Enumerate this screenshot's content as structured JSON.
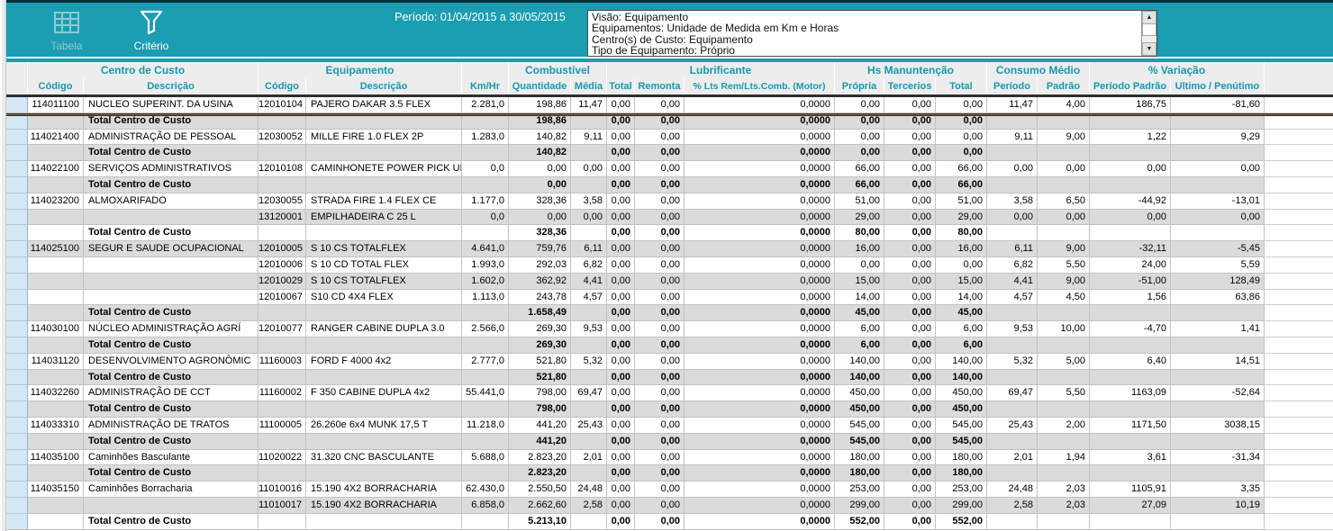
{
  "toolbar": {
    "bg_color": "#1b9db2",
    "buttons": [
      {
        "label": "Tabela",
        "icon": "table-icon",
        "disabled": true
      },
      {
        "label": "Critério",
        "icon": "filter-icon",
        "disabled": false
      }
    ],
    "period_label": "Período: 01/04/2015 a 30/05/2015"
  },
  "info_box": {
    "lines": [
      "Visão: Equipamento",
      "Equipamentos: Unidade de Medida em Km e Horas",
      "Centro(s) de Custo: Equipamento",
      "Tipo de Equipamento: Próprio"
    ],
    "scroll_up_icon": "▲",
    "scroll_down_icon": "▼"
  },
  "table": {
    "accent_color": "#1898ae",
    "groups": [
      {
        "label": "",
        "cols": [
          0
        ]
      },
      {
        "label": "Centro de Custo",
        "cols": [
          1,
          2
        ]
      },
      {
        "label": "Equipamento",
        "cols": [
          3,
          4
        ]
      },
      {
        "label": "",
        "cols": [
          5
        ]
      },
      {
        "label": "Combustível",
        "cols": [
          6,
          7
        ]
      },
      {
        "label": "Lubrificante",
        "cols": [
          8,
          9,
          10
        ]
      },
      {
        "label": "Hs Manuntenção",
        "cols": [
          11,
          12,
          13
        ]
      },
      {
        "label": "Consumo Médio",
        "cols": [
          14,
          15
        ]
      },
      {
        "label": "% Variação",
        "cols": [
          16,
          17
        ]
      }
    ],
    "columns": [
      "",
      "Código",
      "Descrição",
      "Código",
      "Descrição",
      "Km/Hr",
      "Quantidade",
      "Média",
      "Total",
      "Remonta",
      "% Lts Rem/Lts.Comb. (Motor)",
      "Própria",
      "Tercerios",
      "Total",
      "Período",
      "Padrão",
      "Período Padrão",
      "Ultimo / Penútimo"
    ],
    "total_label": "Total Centro de Custo",
    "rows": [
      {
        "type": "data",
        "selected": true,
        "cells": [
          "114011100",
          "NUCLEO SUPERINT. DA USINA",
          "12010104",
          "PAJERO DAKAR 3.5 FLEX",
          "2.281,0",
          "198,86",
          "11,47",
          "0,00",
          "0,00",
          "0,0000",
          "0,00",
          "0,00",
          "0,00",
          "11,47",
          "4,00",
          "186,75",
          "-81,60"
        ]
      },
      {
        "type": "total",
        "cells": [
          "",
          "Total Centro de Custo",
          "",
          "",
          "",
          "198,86",
          "",
          "0,00",
          "0,00",
          "0,0000",
          "0,00",
          "0,00",
          "0,00",
          "",
          "",
          "",
          ""
        ]
      },
      {
        "type": "data",
        "cells": [
          "114021400",
          "ADMINISTRAÇÃO DE PESSOAL",
          "12030052",
          "MILLE FIRE 1.0 FLEX 2P",
          "1.283,0",
          "140,82",
          "9,11",
          "0,00",
          "0,00",
          "0,0000",
          "0,00",
          "0,00",
          "0,00",
          "9,11",
          "9,00",
          "1,22",
          "9,29"
        ]
      },
      {
        "type": "total",
        "cells": [
          "",
          "Total Centro de Custo",
          "",
          "",
          "",
          "140,82",
          "",
          "0,00",
          "0,00",
          "0,0000",
          "0,00",
          "0,00",
          "0,00",
          "",
          "",
          "",
          ""
        ]
      },
      {
        "type": "data",
        "cells": [
          "114022100",
          "SERVIÇOS ADMINISTRATIVOS",
          "12010108",
          "CAMINHONETE POWER PICK UP",
          "0,0",
          "0,00",
          "0,00",
          "0,00",
          "0,00",
          "0,0000",
          "66,00",
          "0,00",
          "66,00",
          "0,00",
          "0,00",
          "0,00",
          "0,00"
        ]
      },
      {
        "type": "total",
        "cells": [
          "",
          "Total Centro de Custo",
          "",
          "",
          "",
          "0,00",
          "",
          "0,00",
          "0,00",
          "0,0000",
          "66,00",
          "0,00",
          "66,00",
          "",
          "",
          "",
          ""
        ]
      },
      {
        "type": "data",
        "cells": [
          "114023200",
          "ALMOXARIFADO",
          "12030055",
          "STRADA FIRE 1.4 FLEX CE",
          "1.177,0",
          "328,36",
          "3,58",
          "0,00",
          "0,00",
          "0,0000",
          "51,00",
          "0,00",
          "51,00",
          "3,58",
          "6,50",
          "-44,92",
          "-13,01"
        ]
      },
      {
        "type": "data",
        "cells": [
          "",
          "",
          "13120001",
          "EMPILHADEIRA C 25 L",
          "0,0",
          "0,00",
          "0,00",
          "0,00",
          "0,00",
          "0,0000",
          "29,00",
          "0,00",
          "29,00",
          "0,00",
          "0,00",
          "0,00",
          "0,00"
        ]
      },
      {
        "type": "total",
        "cells": [
          "",
          "Total Centro de Custo",
          "",
          "",
          "",
          "328,36",
          "",
          "0,00",
          "0,00",
          "0,0000",
          "80,00",
          "0,00",
          "80,00",
          "",
          "",
          "",
          ""
        ]
      },
      {
        "type": "data",
        "cells": [
          "114025100",
          "SEGUR E SAUDE OCUPACIONAL",
          "12010005",
          "S 10 CS TOTALFLEX",
          "4.641,0",
          "759,76",
          "6,11",
          "0,00",
          "0,00",
          "0,0000",
          "16,00",
          "0,00",
          "16,00",
          "6,11",
          "9,00",
          "-32,11",
          "-5,45"
        ]
      },
      {
        "type": "data",
        "cells": [
          "",
          "",
          "12010006",
          "S 10 CD TOTAL FLEX",
          "1.993,0",
          "292,03",
          "6,82",
          "0,00",
          "0,00",
          "0,0000",
          "0,00",
          "0,00",
          "0,00",
          "6,82",
          "5,50",
          "24,00",
          "5,59"
        ]
      },
      {
        "type": "data",
        "cells": [
          "",
          "",
          "12010029",
          "S 10 CS TOTALFLEX",
          "1.602,0",
          "362,92",
          "4,41",
          "0,00",
          "0,00",
          "0,0000",
          "15,00",
          "0,00",
          "15,00",
          "4,41",
          "9,00",
          "-51,00",
          "128,49"
        ]
      },
      {
        "type": "data",
        "cells": [
          "",
          "",
          "12010067",
          "S10 CD 4X4 FLEX",
          "1.113,0",
          "243,78",
          "4,57",
          "0,00",
          "0,00",
          "0,0000",
          "14,00",
          "0,00",
          "14,00",
          "4,57",
          "4,50",
          "1,56",
          "63,86"
        ]
      },
      {
        "type": "total",
        "cells": [
          "",
          "Total Centro de Custo",
          "",
          "",
          "",
          "1.658,49",
          "",
          "0,00",
          "0,00",
          "0,0000",
          "45,00",
          "0,00",
          "45,00",
          "",
          "",
          "",
          ""
        ]
      },
      {
        "type": "data",
        "cells": [
          "114030100",
          "NÚCLEO ADMINISTRAÇÃO AGRÍ",
          "12010077",
          "RANGER CABINE DUPLA 3.0",
          "2.566,0",
          "269,30",
          "9,53",
          "0,00",
          "0,00",
          "0,0000",
          "6,00",
          "0,00",
          "6,00",
          "9,53",
          "10,00",
          "-4,70",
          "1,41"
        ]
      },
      {
        "type": "total",
        "cells": [
          "",
          "Total Centro de Custo",
          "",
          "",
          "",
          "269,30",
          "",
          "0,00",
          "0,00",
          "0,0000",
          "6,00",
          "0,00",
          "6,00",
          "",
          "",
          "",
          ""
        ]
      },
      {
        "type": "data",
        "cells": [
          "114031120",
          "DESENVOLVIMENTO AGRONÔMIC",
          "11160003",
          "FORD F 4000 4x2",
          "2.777,0",
          "521,80",
          "5,32",
          "0,00",
          "0,00",
          "0,0000",
          "140,00",
          "0,00",
          "140,00",
          "5,32",
          "5,00",
          "6,40",
          "14,51"
        ]
      },
      {
        "type": "total",
        "cells": [
          "",
          "Total Centro de Custo",
          "",
          "",
          "",
          "521,80",
          "",
          "0,00",
          "0,00",
          "0,0000",
          "140,00",
          "0,00",
          "140,00",
          "",
          "",
          "",
          ""
        ]
      },
      {
        "type": "data",
        "cells": [
          "114032260",
          "ADMINISTRAÇÃO DE CCT",
          "11160002",
          "F 350 CABINE DUPLA 4x2",
          "55.441,0",
          "798,00",
          "69,47",
          "0,00",
          "0,00",
          "0,0000",
          "450,00",
          "0,00",
          "450,00",
          "69,47",
          "5,50",
          "1163,09",
          "-52,64"
        ]
      },
      {
        "type": "total",
        "cells": [
          "",
          "Total Centro de Custo",
          "",
          "",
          "",
          "798,00",
          "",
          "0,00",
          "0,00",
          "0,0000",
          "450,00",
          "0,00",
          "450,00",
          "",
          "",
          "",
          ""
        ]
      },
      {
        "type": "data",
        "cells": [
          "114033310",
          "ADMINISTRAÇÃO DE  TRATOS",
          "11100005",
          "26.260e 6x4 MUNK 17,5 T",
          "11.218,0",
          "441,20",
          "25,43",
          "0,00",
          "0,00",
          "0,0000",
          "545,00",
          "0,00",
          "545,00",
          "25,43",
          "2,00",
          "1171,50",
          "3038,15"
        ]
      },
      {
        "type": "total",
        "cells": [
          "",
          "Total Centro de Custo",
          "",
          "",
          "",
          "441,20",
          "",
          "0,00",
          "0,00",
          "0,0000",
          "545,00",
          "0,00",
          "545,00",
          "",
          "",
          "",
          ""
        ]
      },
      {
        "type": "data",
        "cells": [
          "114035100",
          "Caminhões Basculante",
          "11020022",
          "31.320 CNC BASCULANTE",
          "5.688,0",
          "2.823,20",
          "2,01",
          "0,00",
          "0,00",
          "0,0000",
          "180,00",
          "0,00",
          "180,00",
          "2,01",
          "1,94",
          "3,61",
          "-31,34"
        ]
      },
      {
        "type": "total",
        "cells": [
          "",
          "Total Centro de Custo",
          "",
          "",
          "",
          "2.823,20",
          "",
          "0,00",
          "0,00",
          "0,0000",
          "180,00",
          "0,00",
          "180,00",
          "",
          "",
          "",
          ""
        ]
      },
      {
        "type": "data",
        "cells": [
          "114035150",
          "Caminhões Borracharia",
          "11010016",
          "15.190 4X2 BORRACHARIA",
          "62.430,0",
          "2.550,50",
          "24,48",
          "0,00",
          "0,00",
          "0,0000",
          "253,00",
          "0,00",
          "253,00",
          "24,48",
          "2,03",
          "1105,91",
          "3,35"
        ]
      },
      {
        "type": "data",
        "cells": [
          "",
          "",
          "11010017",
          "15.190 4X2 BORRACHARIA",
          "6.858,0",
          "2.662,60",
          "2,58",
          "0,00",
          "0,00",
          "0,0000",
          "299,00",
          "0,00",
          "299,00",
          "2,58",
          "2,03",
          "27,09",
          "10,19"
        ]
      },
      {
        "type": "total",
        "cells": [
          "",
          "Total Centro de Custo",
          "",
          "",
          "",
          "5.213,10",
          "",
          "0,00",
          "0,00",
          "0,0000",
          "552,00",
          "0,00",
          "552,00",
          "",
          "",
          "",
          ""
        ]
      }
    ]
  }
}
